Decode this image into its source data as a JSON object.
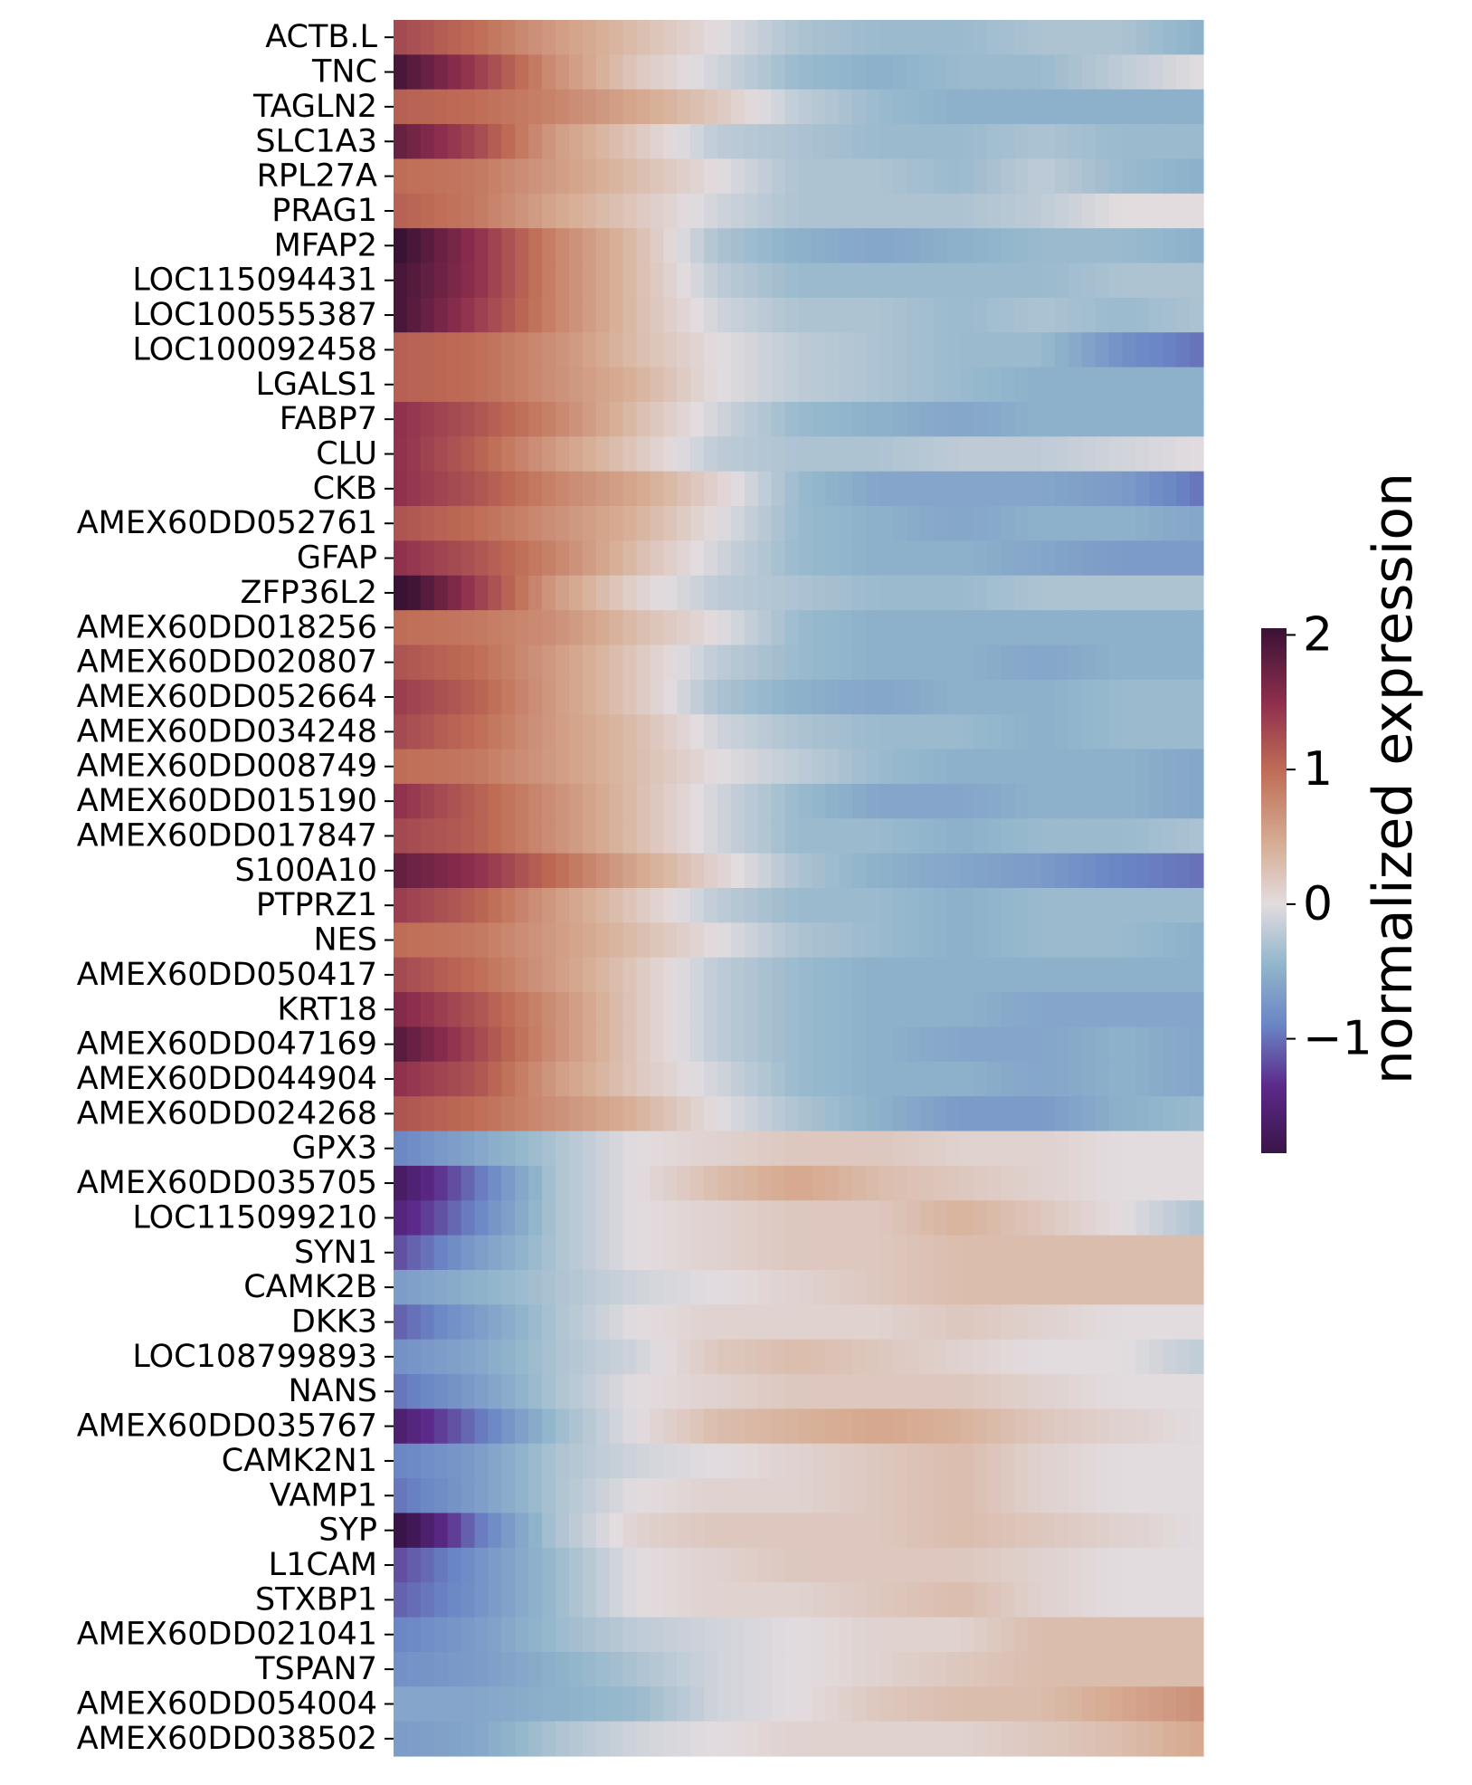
{
  "chart_data": {
    "type": "heatmap",
    "title": "",
    "xlabel": "",
    "ylabel": "",
    "rows": [
      "ACTB.L",
      "TNC",
      "TAGLN2",
      "SLC1A3",
      "RPL27A",
      "PRAG1",
      "MFAP2",
      "LOC115094431",
      "LOC100555387",
      "LOC100092458",
      "LGALS1",
      "FABP7",
      "CLU",
      "CKB",
      "AMEX60DD052761",
      "GFAP",
      "ZFP36L2",
      "AMEX60DD018256",
      "AMEX60DD020807",
      "AMEX60DD052664",
      "AMEX60DD034248",
      "AMEX60DD008749",
      "AMEX60DD015190",
      "AMEX60DD017847",
      "S100A10",
      "PTPRZ1",
      "NES",
      "AMEX60DD050417",
      "KRT18",
      "AMEX60DD047169",
      "AMEX60DD044904",
      "AMEX60DD024268",
      "GPX3",
      "AMEX60DD035705",
      "LOC115099210",
      "SYN1",
      "CAMK2B",
      "DKK3",
      "LOC108799893",
      "NANS",
      "AMEX60DD035767",
      "CAMK2N1",
      "VAMP1",
      "SYP",
      "L1CAM",
      "STXBP1",
      "AMEX60DD021041",
      "TSPAN7",
      "AMEX60DD054004",
      "AMEX60DD038502"
    ],
    "anchor_columns": [
      0,
      0.1,
      0.2,
      0.3,
      0.4,
      0.5,
      0.6,
      0.7,
      0.8,
      0.9,
      1
    ],
    "values": [
      [
        1.3,
        1.0,
        0.6,
        0.3,
        0.0,
        -0.3,
        -0.4,
        -0.4,
        -0.3,
        -0.3,
        -0.5
      ],
      [
        2.0,
        1.4,
        0.7,
        0.2,
        -0.1,
        -0.4,
        -0.5,
        -0.4,
        -0.4,
        -0.2,
        0.0
      ],
      [
        1.1,
        1.0,
        0.8,
        0.5,
        0.2,
        -0.2,
        -0.4,
        -0.5,
        -0.5,
        -0.5,
        -0.5
      ],
      [
        1.8,
        1.3,
        0.6,
        0.2,
        -0.2,
        -0.3,
        -0.4,
        -0.4,
        -0.3,
        -0.4,
        -0.4
      ],
      [
        1.0,
        0.9,
        0.6,
        0.3,
        0.0,
        -0.3,
        -0.3,
        -0.4,
        -0.2,
        -0.4,
        -0.5
      ],
      [
        1.1,
        0.9,
        0.5,
        0.2,
        -0.1,
        -0.3,
        -0.3,
        -0.3,
        -0.2,
        0.0,
        0.0
      ],
      [
        2.1,
        1.5,
        0.8,
        0.3,
        -0.3,
        -0.5,
        -0.6,
        -0.5,
        -0.4,
        -0.4,
        -0.5
      ],
      [
        2.0,
        1.5,
        0.8,
        0.3,
        -0.2,
        -0.4,
        -0.4,
        -0.4,
        -0.4,
        -0.3,
        -0.3
      ],
      [
        2.0,
        1.4,
        0.8,
        0.3,
        -0.1,
        -0.3,
        -0.3,
        -0.4,
        -0.3,
        -0.4,
        -0.3
      ],
      [
        1.1,
        1.0,
        0.7,
        0.3,
        0.0,
        -0.2,
        -0.3,
        -0.4,
        -0.4,
        -0.8,
        -1.0
      ],
      [
        1.1,
        1.0,
        0.7,
        0.4,
        0.0,
        -0.2,
        -0.3,
        -0.4,
        -0.5,
        -0.5,
        -0.5
      ],
      [
        1.5,
        1.2,
        0.8,
        0.3,
        -0.1,
        -0.4,
        -0.5,
        -0.6,
        -0.5,
        -0.5,
        -0.5
      ],
      [
        1.5,
        1.1,
        0.6,
        0.2,
        -0.2,
        -0.3,
        -0.3,
        -0.2,
        -0.2,
        -0.1,
        0.0
      ],
      [
        1.5,
        1.2,
        0.8,
        0.5,
        0.1,
        -0.4,
        -0.6,
        -0.6,
        -0.6,
        -0.7,
        -1.0
      ],
      [
        1.2,
        1.0,
        0.7,
        0.4,
        0.0,
        -0.4,
        -0.5,
        -0.6,
        -0.5,
        -0.5,
        -0.6
      ],
      [
        1.5,
        1.2,
        0.8,
        0.3,
        -0.1,
        -0.4,
        -0.5,
        -0.5,
        -0.6,
        -0.7,
        -0.7
      ],
      [
        2.2,
        1.4,
        0.6,
        0.1,
        -0.2,
        -0.3,
        -0.4,
        -0.4,
        -0.3,
        -0.3,
        -0.3
      ],
      [
        1.0,
        0.9,
        0.7,
        0.3,
        0.0,
        -0.4,
        -0.5,
        -0.5,
        -0.5,
        -0.5,
        -0.5
      ],
      [
        1.2,
        1.0,
        0.6,
        0.2,
        -0.2,
        -0.4,
        -0.5,
        -0.5,
        -0.6,
        -0.5,
        -0.5
      ],
      [
        1.4,
        1.1,
        0.6,
        0.2,
        -0.3,
        -0.5,
        -0.6,
        -0.5,
        -0.5,
        -0.4,
        -0.4
      ],
      [
        1.3,
        1.0,
        0.6,
        0.3,
        -0.1,
        -0.3,
        -0.4,
        -0.4,
        -0.5,
        -0.4,
        -0.4
      ],
      [
        1.0,
        0.9,
        0.6,
        0.3,
        0.0,
        -0.2,
        -0.4,
        -0.5,
        -0.5,
        -0.5,
        -0.6
      ],
      [
        1.5,
        1.1,
        0.7,
        0.3,
        -0.1,
        -0.4,
        -0.6,
        -0.6,
        -0.5,
        -0.5,
        -0.6
      ],
      [
        1.3,
        1.1,
        0.7,
        0.3,
        -0.1,
        -0.4,
        -0.4,
        -0.5,
        -0.4,
        -0.4,
        -0.3
      ],
      [
        1.8,
        1.5,
        1.0,
        0.5,
        0.1,
        -0.3,
        -0.5,
        -0.6,
        -0.7,
        -0.9,
        -1.0
      ],
      [
        1.4,
        1.1,
        0.6,
        0.2,
        -0.2,
        -0.4,
        -0.4,
        -0.5,
        -0.4,
        -0.4,
        -0.4
      ],
      [
        1.0,
        0.9,
        0.6,
        0.3,
        0.0,
        -0.3,
        -0.4,
        -0.5,
        -0.4,
        -0.4,
        -0.5
      ],
      [
        1.3,
        1.0,
        0.6,
        0.2,
        -0.2,
        -0.4,
        -0.5,
        -0.5,
        -0.5,
        -0.5,
        -0.5
      ],
      [
        1.6,
        1.2,
        0.7,
        0.2,
        -0.2,
        -0.4,
        -0.5,
        -0.5,
        -0.6,
        -0.6,
        -0.6
      ],
      [
        1.9,
        1.3,
        0.7,
        0.2,
        -0.2,
        -0.4,
        -0.5,
        -0.6,
        -0.6,
        -0.5,
        -0.6
      ],
      [
        1.5,
        1.2,
        0.6,
        0.2,
        -0.1,
        -0.4,
        -0.5,
        -0.5,
        -0.6,
        -0.5,
        -0.6
      ],
      [
        1.2,
        1.0,
        0.7,
        0.4,
        0.0,
        -0.3,
        -0.5,
        -0.7,
        -0.7,
        -0.5,
        -0.4
      ],
      [
        -0.9,
        -0.6,
        -0.3,
        0.0,
        0.1,
        0.2,
        0.2,
        0.1,
        0.1,
        0.0,
        0.0
      ],
      [
        -1.7,
        -1.0,
        -0.3,
        0.0,
        0.3,
        0.5,
        0.3,
        0.2,
        0.1,
        0.0,
        0.0
      ],
      [
        -1.5,
        -0.9,
        -0.3,
        0.0,
        0.1,
        0.2,
        0.2,
        0.4,
        0.2,
        0.0,
        -0.3
      ],
      [
        -1.2,
        -0.7,
        -0.3,
        0.0,
        0.1,
        0.2,
        0.2,
        0.3,
        0.3,
        0.3,
        0.3
      ],
      [
        -0.7,
        -0.5,
        -0.3,
        -0.1,
        0.0,
        0.1,
        0.2,
        0.3,
        0.3,
        0.3,
        0.3
      ],
      [
        -1.1,
        -0.7,
        -0.3,
        0.0,
        0.1,
        0.1,
        0.1,
        0.2,
        0.1,
        0.0,
        0.0
      ],
      [
        -0.8,
        -0.6,
        -0.3,
        -0.1,
        0.2,
        0.3,
        0.2,
        0.1,
        0.0,
        0.0,
        -0.2
      ],
      [
        -1.0,
        -0.7,
        -0.3,
        0.0,
        0.1,
        0.2,
        0.2,
        0.2,
        0.1,
        0.0,
        0.0
      ],
      [
        -1.6,
        -1.0,
        -0.4,
        0.0,
        0.3,
        0.4,
        0.5,
        0.4,
        0.2,
        0.1,
        0.0
      ],
      [
        -0.9,
        -0.7,
        -0.3,
        -0.1,
        0.0,
        0.1,
        0.2,
        0.3,
        0.1,
        0.0,
        0.0
      ],
      [
        -1.0,
        -0.7,
        -0.3,
        0.0,
        0.1,
        0.1,
        0.2,
        0.3,
        0.1,
        0.0,
        0.0
      ],
      [
        -2.0,
        -1.0,
        -0.3,
        0.1,
        0.2,
        0.2,
        0.2,
        0.3,
        0.2,
        0.1,
        0.0
      ],
      [
        -1.2,
        -0.8,
        -0.4,
        0.0,
        0.1,
        0.2,
        0.2,
        0.2,
        0.1,
        0.0,
        0.0
      ],
      [
        -1.1,
        -0.8,
        -0.4,
        0.0,
        0.1,
        0.1,
        0.2,
        0.3,
        0.1,
        0.0,
        0.0
      ],
      [
        -0.9,
        -0.7,
        -0.4,
        -0.2,
        -0.1,
        0.0,
        0.1,
        0.1,
        0.3,
        0.3,
        0.3
      ],
      [
        -0.8,
        -0.7,
        -0.5,
        -0.3,
        -0.1,
        0.0,
        0.1,
        0.2,
        0.3,
        0.3,
        0.3
      ],
      [
        -0.6,
        -0.6,
        -0.5,
        -0.4,
        -0.1,
        0.0,
        0.2,
        0.3,
        0.3,
        0.5,
        0.7
      ],
      [
        -0.7,
        -0.6,
        -0.3,
        -0.1,
        0.0,
        0.1,
        0.1,
        0.1,
        0.2,
        0.3,
        0.5
      ]
    ],
    "colorbar": {
      "label": "normalized expression",
      "ticks": [
        2,
        1,
        0,
        -1
      ],
      "tick_labels": [
        "2",
        "1",
        "0",
        "−1"
      ],
      "range": [
        -1.85,
        2.05
      ],
      "colormap": "twilight_shifted",
      "color_stops": [
        {
          "v": -1.85,
          "c": "#3a1449"
        },
        {
          "v": -1.35,
          "c": "#5c2a8a"
        },
        {
          "v": -0.9,
          "c": "#6a85c5"
        },
        {
          "v": -0.45,
          "c": "#92b6cc"
        },
        {
          "v": 0.0,
          "c": "#e2dcdf"
        },
        {
          "v": 0.45,
          "c": "#d7ad94"
        },
        {
          "v": 1.0,
          "c": "#bf6c55"
        },
        {
          "v": 1.5,
          "c": "#8e2e4e"
        },
        {
          "v": 2.05,
          "c": "#3a1235"
        }
      ]
    }
  }
}
